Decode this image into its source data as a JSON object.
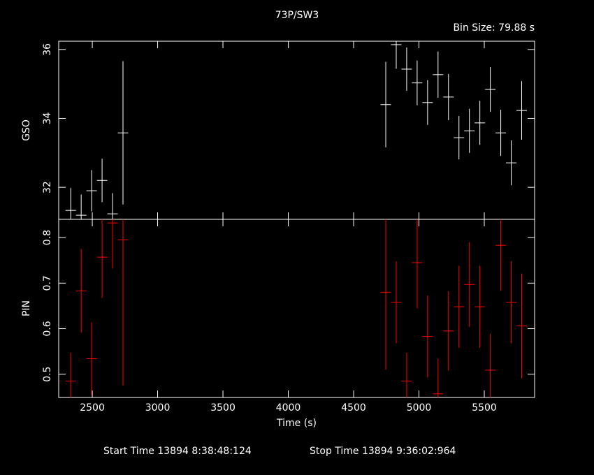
{
  "title": "73P/SW3",
  "bin_size_label": "Bin Size: 79.88 s",
  "footer": {
    "start": "Start Time 13894  8:38:48:124",
    "stop": "Stop Time 13894  9:36:02:964"
  },
  "chart_data": [
    {
      "type": "errorbar",
      "y_label": "GSO",
      "color": "#ffffff",
      "x": [
        2335,
        2415,
        2495,
        2575,
        2655,
        2735,
        4746,
        4826,
        4906,
        4986,
        5066,
        5146,
        5226,
        5306,
        5386,
        5466,
        5546,
        5626,
        5706,
        5786
      ],
      "values": [
        31.33,
        31.19,
        31.9,
        32.2,
        31.23,
        33.58,
        34.4,
        36.14,
        35.43,
        35.03,
        34.46,
        35.27,
        34.62,
        33.44,
        33.64,
        33.87,
        34.84,
        33.58,
        32.71,
        34.23
      ],
      "yerr": [
        0.65,
        0.6,
        0.6,
        0.63,
        0.6,
        2.08,
        1.24,
        0.7,
        0.63,
        0.65,
        0.65,
        0.67,
        0.67,
        0.63,
        0.64,
        0.64,
        0.65,
        0.67,
        0.65,
        0.85
      ],
      "xerr": 40,
      "xlim": [
        2243,
        5885
      ],
      "ylim": [
        31.07,
        36.24
      ],
      "xticks": [
        2500,
        3000,
        3500,
        4000,
        4500,
        5000,
        5500
      ],
      "yticks": [
        32,
        34,
        36
      ]
    },
    {
      "type": "errorbar",
      "y_label": "PIN",
      "x_label": "Time (s)",
      "color": "#ff0000",
      "x": [
        2335,
        2415,
        2495,
        2575,
        2655,
        2735,
        4746,
        4826,
        4906,
        4986,
        5066,
        5146,
        5226,
        5306,
        5386,
        5466,
        5546,
        5626,
        5706,
        5786
      ],
      "values": [
        0.485,
        0.683,
        0.534,
        0.757,
        0.832,
        0.795,
        0.68,
        0.658,
        0.485,
        0.745,
        0.583,
        0.457,
        0.595,
        0.648,
        0.697,
        0.648,
        0.509,
        0.783,
        0.658,
        0.606
      ],
      "yerr": [
        0.062,
        0.092,
        0.08,
        0.09,
        0.1,
        0.32,
        0.17,
        0.09,
        0.062,
        0.1,
        0.09,
        0.077,
        0.087,
        0.09,
        0.093,
        0.09,
        0.08,
        0.1,
        0.09,
        0.115
      ],
      "xerr": 40,
      "xlim": [
        2243,
        5885
      ],
      "ylim": [
        0.449,
        0.84
      ],
      "xticks": [
        2500,
        3000,
        3500,
        4000,
        4500,
        5000,
        5500
      ],
      "yticks": [
        0.5,
        0.6,
        0.7,
        0.8
      ]
    }
  ]
}
